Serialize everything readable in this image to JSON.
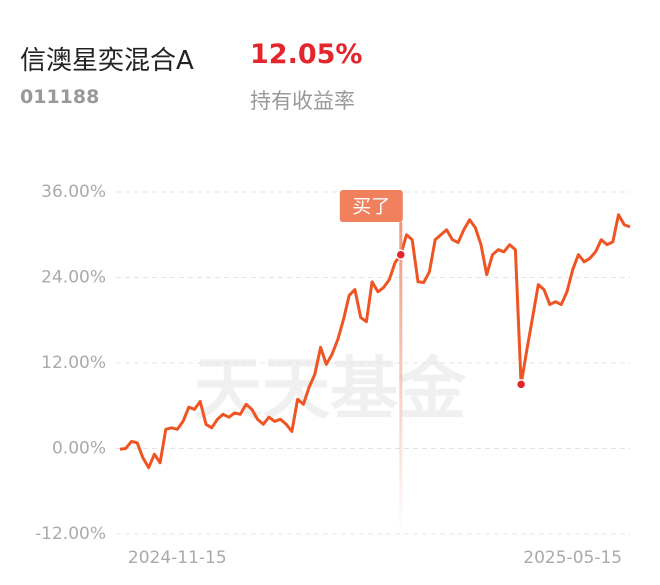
{
  "header": {
    "fund_name": "信澳星奕混合A",
    "fund_code": "011188",
    "return_value": "12.05%",
    "return_label": "持有收益率"
  },
  "chart_data": {
    "type": "line",
    "watermark": "天天基金",
    "categories": [
      null,
      null,
      null,
      null,
      null,
      null,
      null,
      null,
      null,
      null,
      "2024-11-15",
      null,
      null,
      null,
      null,
      null,
      null,
      null,
      null,
      null,
      null,
      null,
      null,
      null,
      null,
      null,
      null,
      null,
      null,
      null,
      null,
      null,
      null,
      null,
      null,
      null,
      null,
      null,
      null,
      null,
      null,
      null,
      null,
      null,
      null,
      null,
      null,
      null,
      null,
      null,
      null,
      null,
      null,
      null,
      null,
      null,
      null,
      null,
      null,
      null,
      null,
      null,
      null,
      null,
      null,
      null,
      null,
      null,
      null,
      null,
      null,
      null,
      null,
      null,
      null,
      null,
      null,
      null,
      null,
      "2025-05-15",
      null,
      null,
      null,
      null,
      null,
      null,
      null,
      null,
      null,
      null
    ],
    "series": [
      {
        "color": "#ef5523",
        "values": [
          -0.1,
          0,
          1,
          0.8,
          -1.3,
          -2.7,
          -0.8,
          -2,
          2.7,
          2.9,
          2.7,
          3.8,
          5.8,
          5.5,
          6.6,
          3.4,
          2.9,
          4.1,
          4.8,
          4.4,
          5,
          4.8,
          6.2,
          5.5,
          4.1,
          3.4,
          4.4,
          3.8,
          4.1,
          3.4,
          2.4,
          6.9,
          6.2,
          8.6,
          10.4,
          14.2,
          11.8,
          13.2,
          15.3,
          18.1,
          21.5,
          22.3,
          18.4,
          17.8,
          23.4,
          22,
          22.6,
          23.7,
          26.1,
          27.2,
          30,
          29.3,
          23.4,
          23.3,
          24.8,
          29.3,
          30,
          30.7,
          29.3,
          28.9,
          30.7,
          32.1,
          31,
          28.6,
          24.4,
          27.2,
          27.9,
          27.6,
          28.6,
          27.9,
          9,
          13.9,
          18.4,
          23,
          22.3,
          20.2,
          20.6,
          20.2,
          22,
          25.1,
          27.2,
          26.2,
          26.7,
          27.6,
          29.3,
          28.6,
          29,
          32.8,
          31.4,
          31.1
        ]
      }
    ],
    "annotation": {
      "text": "买了",
      "index": 49
    },
    "highlight_index": 70,
    "ylim": [
      -12,
      36
    ],
    "yticks": [
      {
        "value": 36,
        "label": "36.00%"
      },
      {
        "value": 24,
        "label": "24.00%"
      },
      {
        "value": 12,
        "label": "12.00%"
      },
      {
        "value": 0,
        "label": "0.00%"
      },
      {
        "value": -12,
        "label": "-12.00%"
      }
    ],
    "grid": true
  }
}
